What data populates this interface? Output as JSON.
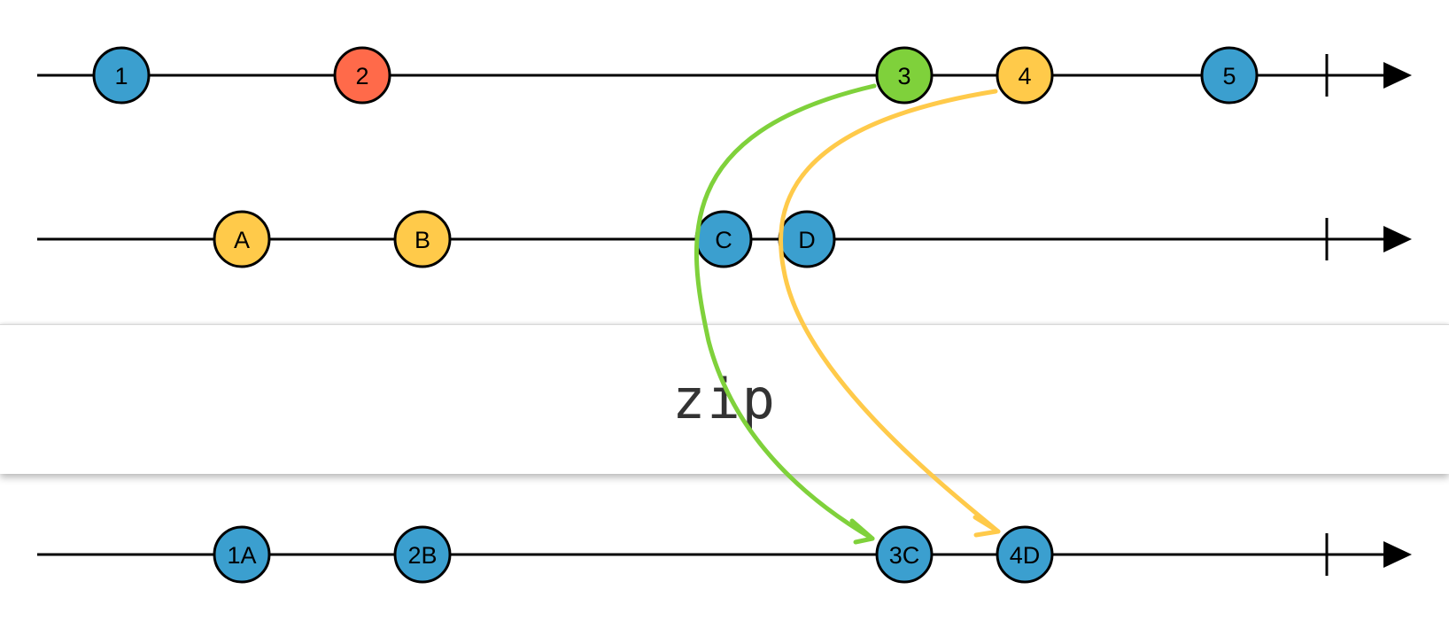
{
  "operator": "zip",
  "colors": {
    "blue": "#3b9fcf",
    "red": "#ff6a4a",
    "green": "#7fd13b",
    "yellow": "#ffca4a",
    "line": "#000000"
  },
  "streams": {
    "top": [
      {
        "label": "1",
        "color": "blue"
      },
      {
        "label": "2",
        "color": "red"
      },
      {
        "label": "3",
        "color": "green"
      },
      {
        "label": "4",
        "color": "yellow"
      },
      {
        "label": "5",
        "color": "blue"
      }
    ],
    "middle": [
      {
        "label": "A",
        "color": "yellow"
      },
      {
        "label": "B",
        "color": "yellow"
      },
      {
        "label": "C",
        "color": "blue"
      },
      {
        "label": "D",
        "color": "blue"
      }
    ],
    "output": [
      {
        "label": "1A",
        "color": "blue"
      },
      {
        "label": "2B",
        "color": "blue"
      },
      {
        "label": "3C",
        "color": "blue"
      },
      {
        "label": "4D",
        "color": "blue"
      }
    ]
  },
  "arrows": [
    {
      "from": "3",
      "to": "3C",
      "color": "green"
    },
    {
      "from": "4",
      "to": "4D",
      "color": "yellow"
    }
  ]
}
